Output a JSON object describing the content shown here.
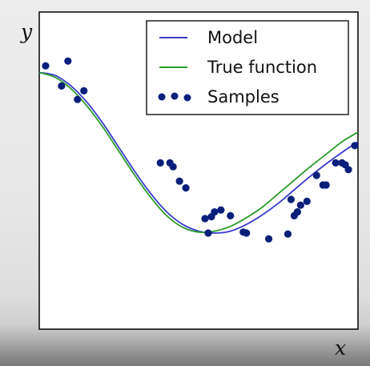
{
  "chart_data": {
    "type": "scatter",
    "title": "",
    "xlabel": "x",
    "ylabel": "y",
    "xlim": [
      0,
      1
    ],
    "ylim": [
      -1.9,
      1.4
    ],
    "grid": false,
    "legend_placement": "top-right",
    "ticks_shown": false,
    "series": [
      {
        "name": "Model",
        "kind": "line",
        "color": "#3b3bd1",
        "x": [
          0,
          0.05,
          0.1,
          0.15,
          0.2,
          0.25,
          0.3,
          0.35,
          0.4,
          0.45,
          0.5,
          0.55,
          0.6,
          0.65,
          0.7,
          0.75,
          0.8,
          0.85,
          0.9,
          0.95,
          1.0
        ],
        "y": [
          0.77,
          0.74,
          0.63,
          0.46,
          0.24,
          -0.01,
          -0.26,
          -0.49,
          -0.68,
          -0.81,
          -0.88,
          -0.9,
          -0.88,
          -0.81,
          -0.71,
          -0.59,
          -0.45,
          -0.31,
          -0.18,
          -0.06,
          0.05
        ]
      },
      {
        "name": "True function",
        "kind": "line",
        "color": "#2a9d2a",
        "x": [
          0,
          0.05,
          0.1,
          0.15,
          0.2,
          0.25,
          0.3,
          0.35,
          0.4,
          0.45,
          0.5,
          0.55,
          0.6,
          0.65,
          0.7,
          0.75,
          0.8,
          0.85,
          0.9,
          0.95,
          1.0
        ],
        "y": [
          0.77,
          0.72,
          0.6,
          0.42,
          0.2,
          -0.05,
          -0.3,
          -0.53,
          -0.72,
          -0.84,
          -0.89,
          -0.88,
          -0.83,
          -0.74,
          -0.63,
          -0.49,
          -0.35,
          -0.21,
          -0.08,
          0.05,
          0.15
        ]
      },
      {
        "name": "Samples",
        "kind": "scatter",
        "color": "#0a1f7a",
        "x": [
          0.02,
          0.07,
          0.09,
          0.12,
          0.14,
          0.38,
          0.41,
          0.42,
          0.44,
          0.46,
          0.52,
          0.53,
          0.54,
          0.55,
          0.57,
          0.6,
          0.64,
          0.65,
          0.72,
          0.78,
          0.79,
          0.8,
          0.81,
          0.82,
          0.84,
          0.87,
          0.9,
          0.89,
          0.93,
          0.96,
          0.95,
          0.97,
          0.99
        ],
        "y": [
          0.84,
          0.63,
          0.89,
          0.49,
          0.58,
          -0.17,
          -0.17,
          -0.21,
          -0.36,
          -0.43,
          -0.75,
          -0.9,
          -0.73,
          -0.68,
          -0.66,
          -0.72,
          -0.89,
          -0.9,
          -0.96,
          -0.91,
          -0.55,
          -0.72,
          -0.68,
          -0.61,
          -0.57,
          -0.3,
          -0.4,
          -0.4,
          -0.17,
          -0.19,
          -0.17,
          -0.24,
          0.01
        ]
      }
    ]
  }
}
